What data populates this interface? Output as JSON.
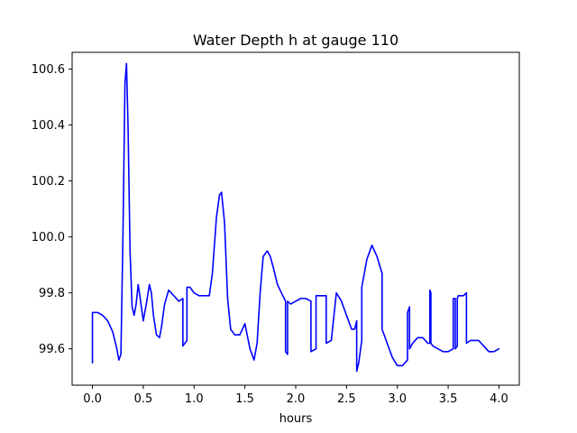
{
  "chart_data": {
    "type": "line",
    "title": "Water Depth h at gauge 110",
    "xlabel": "hours",
    "ylabel": "",
    "xlim": [
      -0.2,
      4.2
    ],
    "ylim": [
      99.47,
      100.66
    ],
    "xticks": [
      0.0,
      0.5,
      1.0,
      1.5,
      2.0,
      2.5,
      3.0,
      3.5,
      4.0
    ],
    "xtick_labels": [
      "0.0",
      "0.5",
      "1.0",
      "1.5",
      "2.0",
      "2.5",
      "3.0",
      "3.5",
      "4.0"
    ],
    "yticks": [
      99.6,
      99.8,
      100.0,
      100.2,
      100.4,
      100.6
    ],
    "ytick_labels": [
      "99.6",
      "99.8",
      "100.0",
      "100.2",
      "100.4",
      "100.6"
    ],
    "grid": false,
    "series": [
      {
        "color": "#0000ff",
        "x": [
          0.0,
          0.0,
          0.05,
          0.1,
          0.15,
          0.2,
          0.24,
          0.26,
          0.28,
          0.3,
          0.32,
          0.335,
          0.35,
          0.37,
          0.39,
          0.41,
          0.43,
          0.45,
          0.47,
          0.5,
          0.53,
          0.56,
          0.58,
          0.6,
          0.63,
          0.66,
          0.68,
          0.71,
          0.75,
          0.8,
          0.85,
          0.89,
          0.89,
          0.93,
          0.93,
          0.96,
          1.0,
          1.05,
          1.1,
          1.15,
          1.18,
          1.22,
          1.25,
          1.27,
          1.3,
          1.33,
          1.36,
          1.4,
          1.45,
          1.5,
          1.55,
          1.59,
          1.62,
          1.65,
          1.68,
          1.72,
          1.75,
          1.78,
          1.82,
          1.86,
          1.9,
          1.9,
          1.92,
          1.92,
          1.95,
          2.0,
          2.05,
          2.1,
          2.15,
          2.15,
          2.2,
          2.2,
          2.25,
          2.3,
          2.3,
          2.35,
          2.35,
          2.4,
          2.45,
          2.5,
          2.55,
          2.58,
          2.6,
          2.6,
          2.62,
          2.65,
          2.65,
          2.7,
          2.75,
          2.8,
          2.85,
          2.85,
          2.9,
          2.95,
          3.0,
          3.05,
          3.1,
          3.1,
          3.12,
          3.12,
          3.15,
          3.2,
          3.25,
          3.3,
          3.32,
          3.32,
          3.33,
          3.33,
          3.35,
          3.4,
          3.45,
          3.5,
          3.55,
          3.55,
          3.57,
          3.57,
          3.59,
          3.59,
          3.6,
          3.6,
          3.65,
          3.68,
          3.68,
          3.72,
          3.75,
          3.8,
          3.85,
          3.9,
          3.95,
          4.0
        ],
        "y": [
          99.55,
          99.73,
          99.73,
          99.72,
          99.7,
          99.66,
          99.6,
          99.56,
          99.58,
          100.0,
          100.55,
          100.62,
          100.4,
          99.95,
          99.75,
          99.72,
          99.76,
          99.83,
          99.78,
          99.7,
          99.76,
          99.83,
          99.8,
          99.72,
          99.65,
          99.64,
          99.68,
          99.76,
          99.81,
          99.79,
          99.77,
          99.78,
          99.61,
          99.63,
          99.82,
          99.82,
          99.8,
          99.79,
          99.79,
          99.79,
          99.87,
          100.07,
          100.15,
          100.16,
          100.05,
          99.78,
          99.67,
          99.65,
          99.65,
          99.69,
          99.6,
          99.56,
          99.62,
          99.8,
          99.93,
          99.95,
          99.93,
          99.89,
          99.83,
          99.8,
          99.77,
          99.59,
          99.58,
          99.77,
          99.76,
          99.77,
          99.78,
          99.78,
          99.77,
          99.59,
          99.6,
          99.79,
          99.79,
          99.79,
          99.62,
          99.63,
          99.63,
          99.8,
          99.77,
          99.72,
          99.67,
          99.67,
          99.7,
          99.52,
          99.55,
          99.63,
          99.82,
          99.92,
          99.97,
          99.93,
          99.87,
          99.67,
          99.62,
          99.57,
          99.54,
          99.54,
          99.56,
          99.73,
          99.75,
          99.6,
          99.62,
          99.64,
          99.64,
          99.62,
          99.62,
          99.81,
          99.8,
          99.62,
          99.61,
          99.6,
          99.59,
          99.59,
          99.6,
          99.78,
          99.78,
          99.6,
          99.61,
          99.78,
          99.79,
          99.79,
          99.79,
          99.8,
          99.62,
          99.63,
          99.63,
          99.63,
          99.61,
          99.59,
          99.59,
          99.6
        ]
      }
    ]
  }
}
